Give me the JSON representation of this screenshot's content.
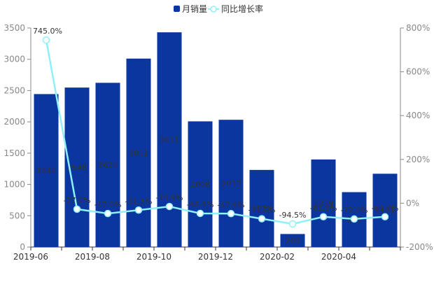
{
  "chart_data": {
    "type": "bar",
    "title": "",
    "categories": [
      "2019-06",
      "2019-07",
      "2019-08",
      "2019-09",
      "2019-10",
      "2019-11",
      "2019-12",
      "2020-01",
      "2020-02",
      "2020-03",
      "2020-04",
      "2020-05"
    ],
    "x_tick_labels": [
      "2019-06",
      "2019-08",
      "2019-10",
      "2019-12",
      "2020-02",
      "2020-04"
    ],
    "series": [
      {
        "name": "月销量",
        "kind": "bar",
        "axis": "left",
        "color": "#0b36a0",
        "values": [
          2444,
          2548,
          2624,
          3011,
          3431,
          2008,
          2033,
          1232,
          208,
          1399,
          877,
          1171
        ],
        "labels": [
          "2444",
          "2548",
          "2624",
          "3011",
          "3431",
          "2008",
          "2033",
          "1232",
          "208",
          "1399",
          "877",
          "1171"
        ]
      },
      {
        "name": "同比增长率",
        "kind": "line",
        "axis": "right",
        "color": "#8ff1f8",
        "values": [
          745.0,
          -27.0,
          -47.0,
          -31.5,
          -14.9,
          -46.5,
          -47.6,
          -71.0,
          -94.5,
          -61.9,
          -72.0,
          -62.0
        ],
        "labels": [
          "745.0%",
          "-27.0%",
          "-47.0%",
          "-31.5%",
          "-14.9%",
          "-46.5%",
          "-47.6%",
          "-71.0%",
          "-94.5%",
          "-61.9%",
          "-72.0%",
          "-62.0%"
        ]
      }
    ],
    "y_left": {
      "min": 0,
      "max": 3500,
      "ticks": [
        0,
        500,
        1000,
        1500,
        2000,
        2500,
        3000,
        3500
      ],
      "tick_labels": [
        "0",
        "500",
        "1000",
        "1500",
        "2000",
        "2500",
        "3000",
        "3500"
      ]
    },
    "y_right": {
      "min": -200,
      "max": 800,
      "ticks": [
        -200,
        0,
        200,
        400,
        600,
        800
      ],
      "tick_labels": [
        "-200%",
        "0%",
        "200%",
        "400%",
        "600%",
        "800%"
      ]
    },
    "legend": {
      "position": "top-center",
      "items": [
        "月销量",
        "同比增长率"
      ]
    },
    "grid": false
  }
}
